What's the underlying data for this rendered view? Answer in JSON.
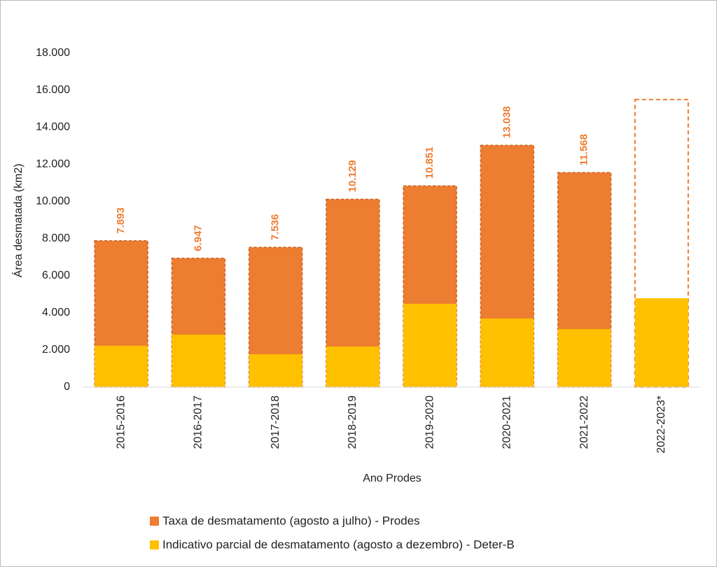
{
  "chart_data": {
    "type": "overlay-bar",
    "y_label": "Área desmatada (km2)",
    "x_label": "Ano Prodes",
    "categories": [
      "2015-2016",
      "2016-2017",
      "2017-2018",
      "2018-2019",
      "2019-2020",
      "2020-2021",
      "2021-2022",
      "2022-2023*"
    ],
    "series": [
      {
        "name": "Taxa de desmatamento (agosto a julho) - Prodes",
        "color": "#ED7D31",
        "values": [
          7893,
          6947,
          7536,
          10129,
          10851,
          13038,
          11568,
          null
        ],
        "value_labels": [
          "7.893",
          "6.947",
          "7.536",
          "10.129",
          "10.851",
          "13.038",
          "11.568",
          null
        ]
      },
      {
        "name": "Indicativo parcial de desmatamento (agosto a dezembro) - Deter-B",
        "color": "#FFC000",
        "values": [
          2230,
          2830,
          1770,
          2190,
          4490,
          3700,
          3130,
          4790
        ]
      }
    ],
    "outline_values": [
      null,
      null,
      null,
      null,
      null,
      null,
      null,
      15500
    ],
    "ylim": [
      0,
      18000
    ],
    "yticks": [
      0,
      {
        "value": 2000,
        "label": "2.000"
      },
      {
        "value": 4000,
        "label": "4.000"
      },
      {
        "value": 6000,
        "label": "6.000"
      },
      {
        "value": 8000,
        "label": "8.000"
      },
      {
        "value": 10000,
        "label": "10.000"
      },
      {
        "value": 12000,
        "label": "12.000"
      },
      {
        "value": 14000,
        "label": "14.000"
      },
      {
        "value": 16000,
        "label": "16.000"
      },
      {
        "value": 18000,
        "label": "18.000"
      }
    ],
    "grid": false
  }
}
